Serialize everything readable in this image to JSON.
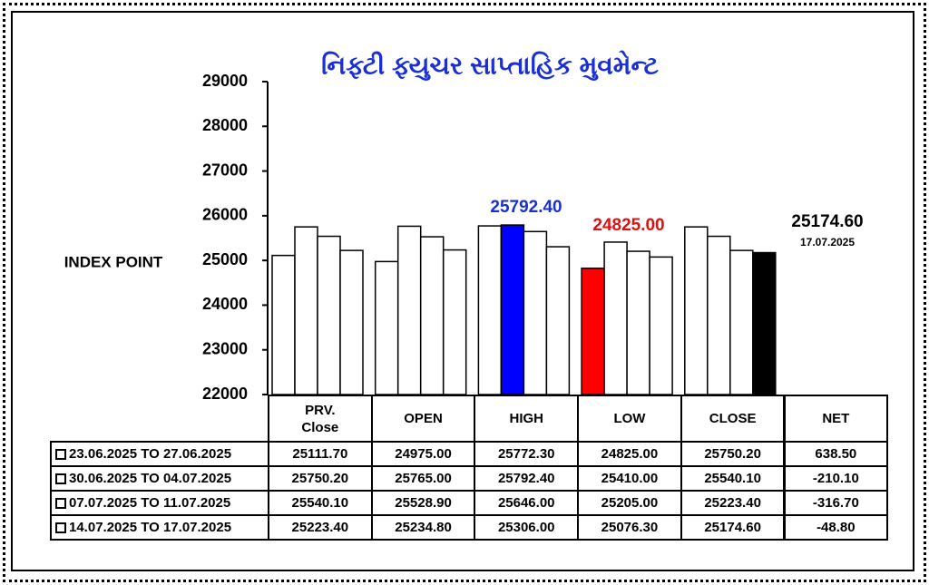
{
  "chart_data": {
    "type": "bar",
    "title": "નિફ્ટી ફ્યુચર સાપ્તાહિક મુવમેન્ટ",
    "y_label": "INDEX POINT",
    "categories": [
      "PRV.\nClose",
      "OPEN",
      "HIGH",
      "LOW",
      "CLOSE"
    ],
    "net_label": "NET",
    "ylim": [
      22000,
      29000
    ],
    "yticks": [
      22000,
      23000,
      24000,
      25000,
      26000,
      27000,
      28000,
      29000
    ],
    "series": [
      {
        "name": "23.06.2025 TO 27.06.2025",
        "values": [
          25111.7,
          24975,
          25772.3,
          24825,
          25750.2
        ],
        "value_labels": [
          "25111.70",
          "24975.00",
          "25772.30",
          "24825.00",
          "25750.20"
        ],
        "colors": [
          "#ffffff",
          "#ffffff",
          "#ffffff",
          "#ff0000",
          "#ffffff"
        ],
        "net": 638.5,
        "net_label": "638.50"
      },
      {
        "name": "30.06.2025 TO 04.07.2025",
        "values": [
          25750.2,
          25765,
          25792.4,
          25410,
          25540.1
        ],
        "value_labels": [
          "25750.20",
          "25765.00",
          "25792.40",
          "25410.00",
          "25540.10"
        ],
        "colors": [
          "#ffffff",
          "#ffffff",
          "#0000ff",
          "#ffffff",
          "#ffffff"
        ],
        "net": -210.1,
        "net_label": "-210.10"
      },
      {
        "name": "07.07.2025 TO 11.07.2025",
        "values": [
          25540.1,
          25528.9,
          25646,
          25205,
          25223.4
        ],
        "value_labels": [
          "25540.10",
          "25528.90",
          "25646.00",
          "25205.00",
          "25223.40"
        ],
        "colors": [
          "#ffffff",
          "#ffffff",
          "#ffffff",
          "#ffffff",
          "#ffffff"
        ],
        "net": -316.7,
        "net_label": "-316.70"
      },
      {
        "name": "14.07.2025 TO 17.07.2025",
        "values": [
          25223.4,
          25234.8,
          25306,
          25076.3,
          25174.6
        ],
        "value_labels": [
          "25223.40",
          "25234.80",
          "25306.00",
          "25076.30",
          "25174.60"
        ],
        "colors": [
          "#ffffff",
          "#ffffff",
          "#ffffff",
          "#ffffff",
          "#000000"
        ],
        "net": -48.8,
        "net_label": "-48.80"
      }
    ],
    "annotations": [
      {
        "text": "25792.40",
        "color": "#1a2fd6"
      },
      {
        "text": "24825.00",
        "color": "#e01010"
      },
      {
        "text": "25174.60",
        "color": "#000000"
      },
      {
        "text": "17.07.2025",
        "color": "#000000"
      }
    ]
  }
}
